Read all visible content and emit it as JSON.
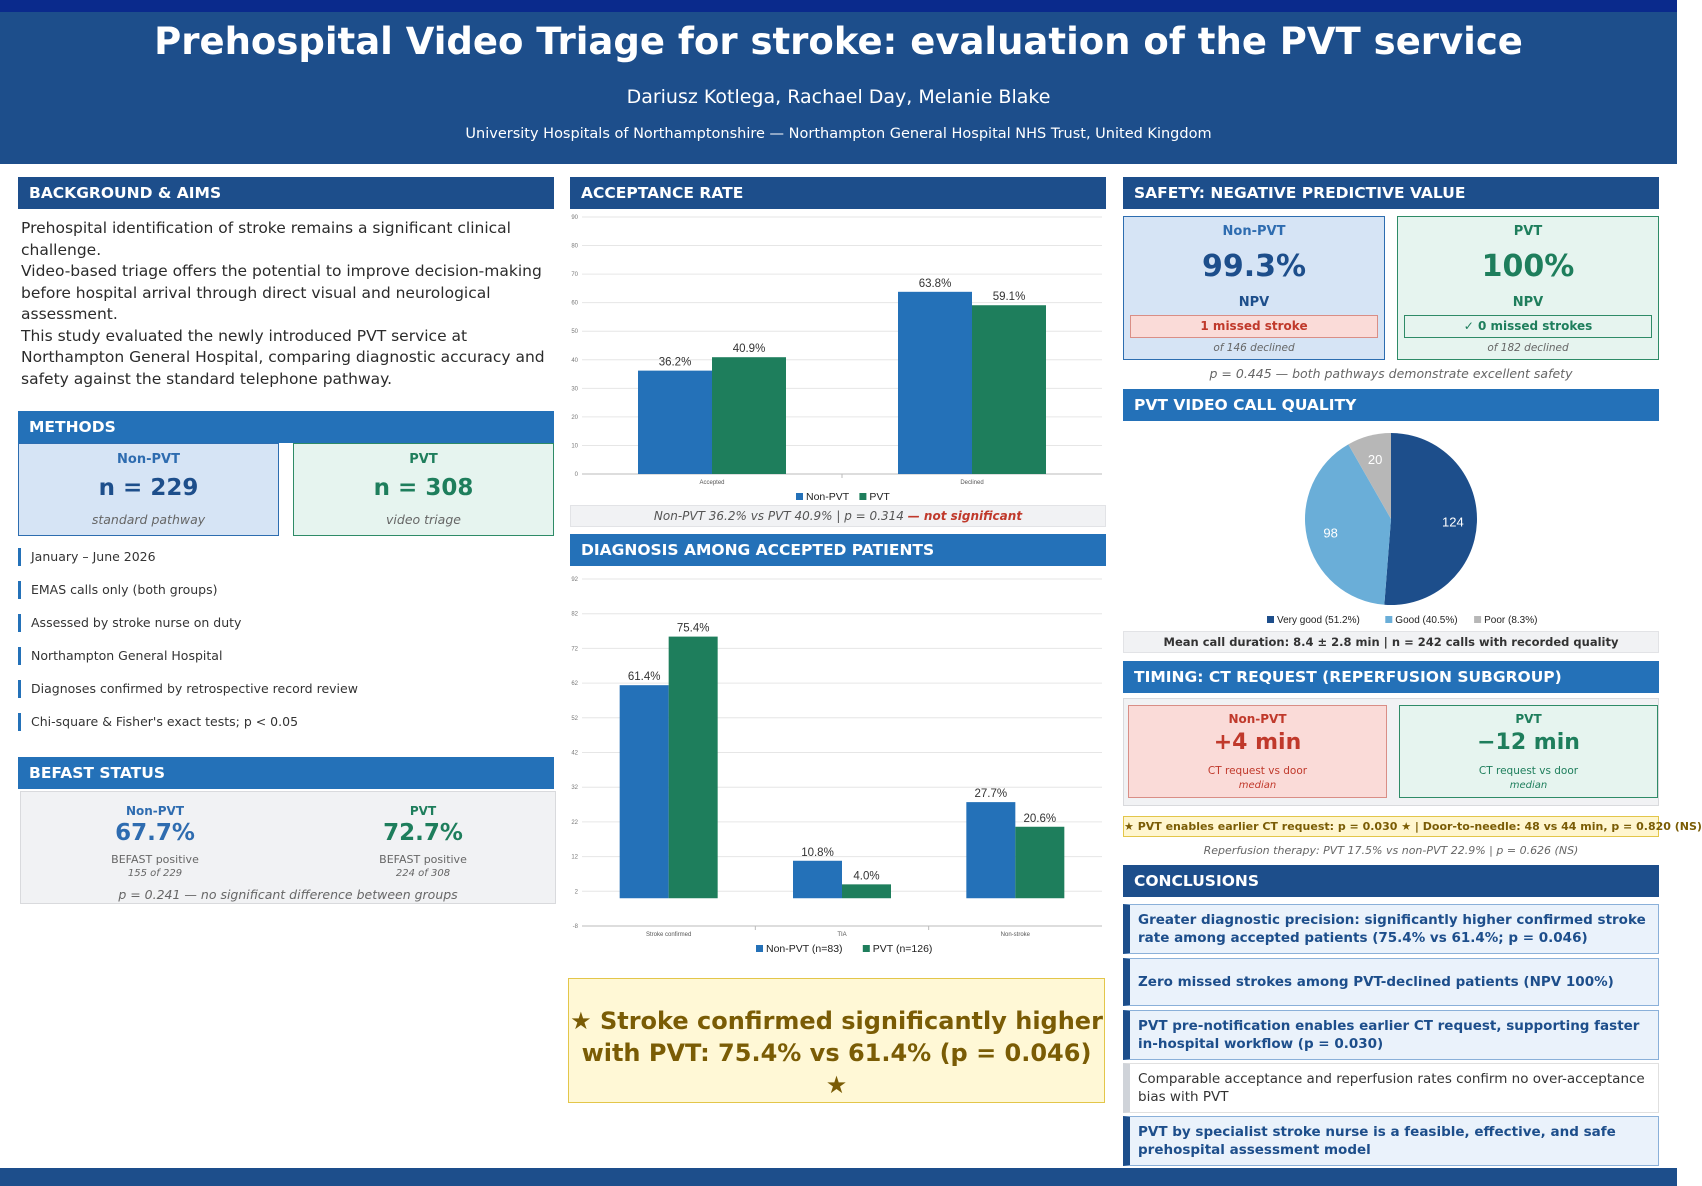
{
  "header": {
    "title": "Prehospital Video Triage for stroke: evaluation of the PVT service",
    "authors": "Dariusz Kotlega, Rachael Day, Melanie Blake",
    "affiliation": "University Hospitals of Northamptonshire — Northampton General Hospital NHS Trust, United Kingdom"
  },
  "colors": {
    "non_pvt": "#2471b8",
    "pvt": "#1e7e5c",
    "header": "#1d4e8b",
    "pie_very_good": "#1d4e8b",
    "pie_good": "#6aaed8",
    "pie_poor": "#b7b7b7"
  },
  "background": {
    "heading": "BACKGROUND & AIMS",
    "paragraphs": [
      "Prehospital identification of stroke remains a significant clinical challenge.",
      "Video-based triage offers the potential to improve decision-making before hospital arrival through direct visual and neurological assessment.",
      "This study evaluated the newly introduced PVT service at Northampton General Hospital, comparing diagnostic accuracy and safety against the standard telephone pathway."
    ]
  },
  "methods": {
    "heading": "METHODS",
    "non_pvt": {
      "label": "Non-PVT",
      "n": "n = 229",
      "desc": "standard pathway"
    },
    "pvt": {
      "label": "PVT",
      "n": "n = 308",
      "desc": "video triage"
    },
    "items": [
      "January – June 2026",
      "EMAS calls only (both groups)",
      "Assessed by stroke nurse on duty",
      "Northampton General Hospital",
      "Diagnoses confirmed by retrospective record review",
      "Chi-square & Fisher's exact tests; p < 0.05"
    ]
  },
  "befast": {
    "heading": "BEFAST STATUS",
    "non_pvt": {
      "label": "Non-PVT",
      "value": "67.7%",
      "desc": "BEFAST positive",
      "count": "155 of 229"
    },
    "pvt": {
      "label": "PVT",
      "value": "72.7%",
      "desc": "BEFAST positive",
      "count": "224 of 308"
    },
    "note": "p = 0.241 — no significant difference between groups"
  },
  "acceptance": {
    "heading": "ACCEPTANCE RATE",
    "caption_main": "Non-PVT 36.2%  vs  PVT 40.9%   |   p = 0.314 ",
    "caption_flag": "— not significant"
  },
  "diagnosis": {
    "heading": "DIAGNOSIS AMONG ACCEPTED PATIENTS"
  },
  "chart_data": [
    {
      "type": "bar",
      "title": "ACCEPTANCE RATE",
      "categories": [
        "Accepted",
        "Declined"
      ],
      "series": [
        {
          "name": "Non-PVT",
          "values": [
            36.2,
            63.8
          ],
          "labels": [
            "36.2%",
            "63.8%"
          ]
        },
        {
          "name": "PVT",
          "values": [
            40.9,
            59.1
          ],
          "labels": [
            "40.9%",
            "59.1%"
          ]
        }
      ],
      "ylim": [
        0,
        90
      ],
      "yticks": [
        0,
        10,
        20,
        30,
        40,
        50,
        60,
        70,
        80,
        90
      ],
      "grid": true,
      "legend": "bottom"
    },
    {
      "type": "bar",
      "title": "DIAGNOSIS AMONG ACCEPTED PATIENTS",
      "categories": [
        "Stroke confirmed",
        "TIA",
        "Non-stroke"
      ],
      "series": [
        {
          "name": "Non-PVT (n=83)",
          "values": [
            61.4,
            10.8,
            27.7
          ],
          "labels": [
            "61.4%",
            "10.8%",
            "27.7%"
          ]
        },
        {
          "name": "PVT (n=126)",
          "values": [
            75.4,
            4.0,
            20.6
          ],
          "labels": [
            "75.4%",
            "4.0%",
            "20.6%"
          ]
        }
      ],
      "ylim": [
        -8,
        92
      ],
      "yticks": [
        -8,
        2,
        12,
        22,
        32,
        42,
        52,
        62,
        72,
        82,
        92
      ],
      "grid": true,
      "legend": "bottom"
    },
    {
      "type": "pie",
      "title": "PVT VIDEO CALL QUALITY",
      "slices": [
        {
          "name": "Very good (51.2%)",
          "value": 124,
          "label": "124"
        },
        {
          "name": "Good (40.5%)",
          "value": 98,
          "label": "98"
        },
        {
          "name": "Poor (8.3%)",
          "value": 20,
          "label": "20"
        }
      ],
      "legend": "bottom"
    }
  ],
  "safety": {
    "heading": "SAFETY: NEGATIVE PREDICTIVE VALUE",
    "non_pvt": {
      "label": "Non-PVT",
      "value": "99.3%",
      "metric": "NPV",
      "flag": "1 missed stroke",
      "sub": "of 146 declined"
    },
    "pvt": {
      "label": "PVT",
      "value": "100%",
      "metric": "NPV",
      "flag": "✓  0 missed strokes",
      "sub": "of 182 declined"
    },
    "note": "p = 0.445 — both pathways demonstrate excellent safety"
  },
  "quality": {
    "heading": "PVT VIDEO CALL QUALITY",
    "summary": "Mean call duration: 8.4 ± 2.8 min   |   n = 242 calls with recorded quality"
  },
  "timing": {
    "heading": "TIMING: CT REQUEST (REPERFUSION SUBGROUP)",
    "non_pvt": {
      "label": "Non-PVT",
      "value": "+4 min",
      "desc": "CT request vs door",
      "stat": "median"
    },
    "pvt": {
      "label": "PVT",
      "value": "−12 min",
      "desc": "CT request vs door",
      "stat": "median"
    },
    "banner": "★  PVT enables earlier CT request: p = 0.030  ★   |   Door-to-needle: 48 vs 44 min,  p = 0.820 (NS)",
    "note": "Reperfusion therapy: PVT 17.5%  vs  non-PVT 22.9%   |   p = 0.626 (NS)"
  },
  "highlight": {
    "line1": "★  Stroke confirmed significantly higher",
    "line2": "with PVT: 75.4% vs 61.4%   (p = 0.046)  ★"
  },
  "conclusions": {
    "heading": "CONCLUSIONS",
    "items": [
      "Greater diagnostic precision: significantly higher confirmed stroke rate among accepted patients (75.4% vs 61.4%; p = 0.046)",
      "Zero missed strokes among PVT-declined patients (NPV 100%)",
      "PVT pre-notification enables earlier CT request, supporting faster in-hospital workflow (p = 0.030)",
      "Comparable acceptance and reperfusion rates confirm no over-acceptance bias with PVT",
      "PVT by specialist stroke nurse is a feasible, effective, and safe prehospital assessment model"
    ]
  }
}
